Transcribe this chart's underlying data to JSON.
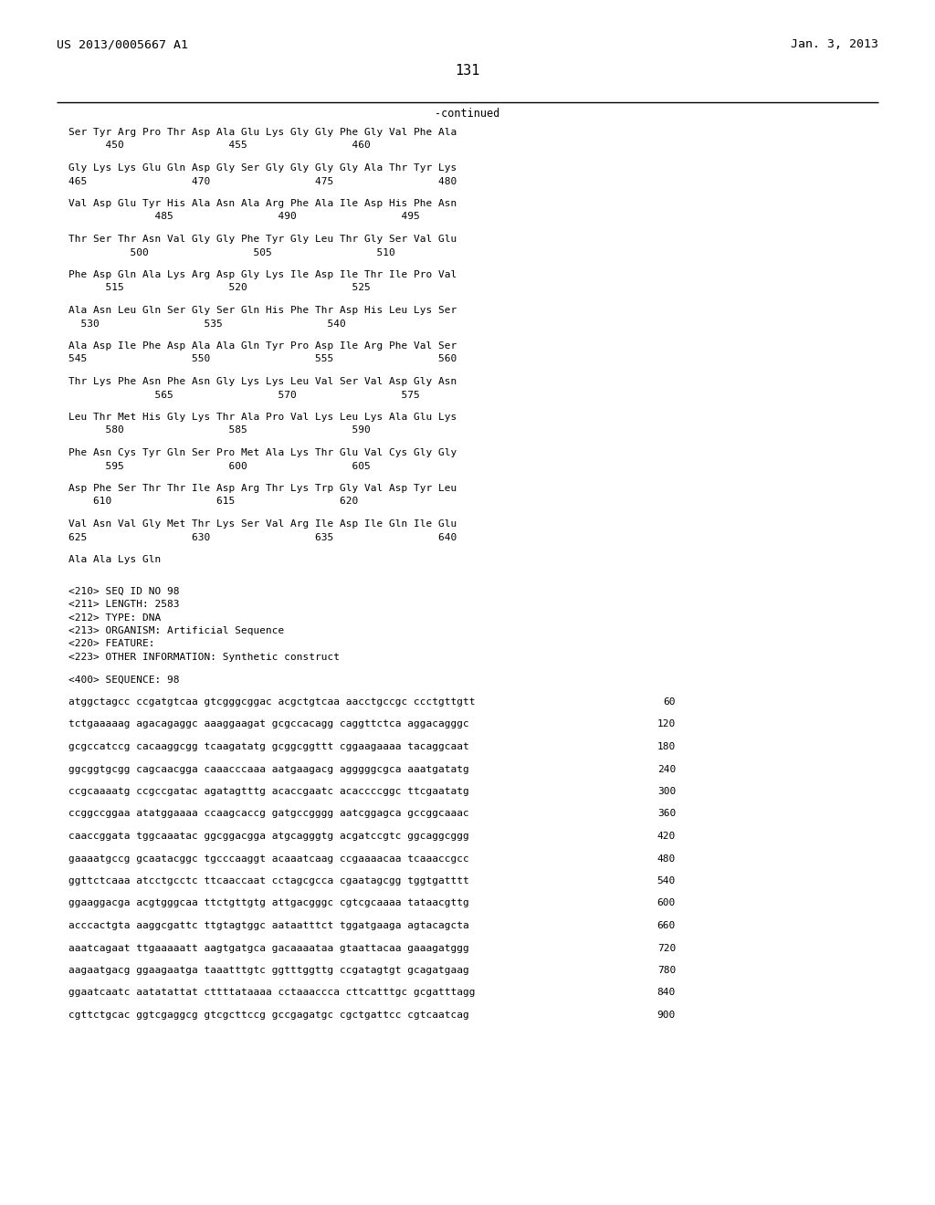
{
  "header_left": "US 2013/0005667 A1",
  "header_right": "Jan. 3, 2013",
  "page_number": "131",
  "continued_label": "-continued",
  "background_color": "#ffffff",
  "text_color": "#000000",
  "content_lines": [
    {
      "type": "seq",
      "text": "Ser Tyr Arg Pro Thr Asp Ala Glu Lys Gly Gly Phe Gly Val Phe Ala"
    },
    {
      "type": "num",
      "text": "      450                 455                 460"
    },
    {
      "type": "blank"
    },
    {
      "type": "seq",
      "text": "Gly Lys Lys Glu Gln Asp Gly Ser Gly Gly Gly Gly Ala Thr Tyr Lys"
    },
    {
      "type": "num",
      "text": "465                 470                 475                 480"
    },
    {
      "type": "blank"
    },
    {
      "type": "seq",
      "text": "Val Asp Glu Tyr His Ala Asn Ala Arg Phe Ala Ile Asp His Phe Asn"
    },
    {
      "type": "num",
      "text": "              485                 490                 495"
    },
    {
      "type": "blank"
    },
    {
      "type": "seq",
      "text": "Thr Ser Thr Asn Val Gly Gly Phe Tyr Gly Leu Thr Gly Ser Val Glu"
    },
    {
      "type": "num",
      "text": "          500                 505                 510"
    },
    {
      "type": "blank"
    },
    {
      "type": "seq",
      "text": "Phe Asp Gln Ala Lys Arg Asp Gly Lys Ile Asp Ile Thr Ile Pro Val"
    },
    {
      "type": "num",
      "text": "      515                 520                 525"
    },
    {
      "type": "blank"
    },
    {
      "type": "seq",
      "text": "Ala Asn Leu Gln Ser Gly Ser Gln His Phe Thr Asp His Leu Lys Ser"
    },
    {
      "type": "num",
      "text": "  530                 535                 540"
    },
    {
      "type": "blank"
    },
    {
      "type": "seq",
      "text": "Ala Asp Ile Phe Asp Ala Ala Gln Tyr Pro Asp Ile Arg Phe Val Ser"
    },
    {
      "type": "num",
      "text": "545                 550                 555                 560"
    },
    {
      "type": "blank"
    },
    {
      "type": "seq",
      "text": "Thr Lys Phe Asn Phe Asn Gly Lys Lys Leu Val Ser Val Asp Gly Asn"
    },
    {
      "type": "num",
      "text": "              565                 570                 575"
    },
    {
      "type": "blank"
    },
    {
      "type": "seq",
      "text": "Leu Thr Met His Gly Lys Thr Ala Pro Val Lys Leu Lys Ala Glu Lys"
    },
    {
      "type": "num",
      "text": "      580                 585                 590"
    },
    {
      "type": "blank"
    },
    {
      "type": "seq",
      "text": "Phe Asn Cys Tyr Gln Ser Pro Met Ala Lys Thr Glu Val Cys Gly Gly"
    },
    {
      "type": "num",
      "text": "      595                 600                 605"
    },
    {
      "type": "blank"
    },
    {
      "type": "seq",
      "text": "Asp Phe Ser Thr Thr Ile Asp Arg Thr Lys Trp Gly Val Asp Tyr Leu"
    },
    {
      "type": "num",
      "text": "    610                 615                 620"
    },
    {
      "type": "blank"
    },
    {
      "type": "seq",
      "text": "Val Asn Val Gly Met Thr Lys Ser Val Arg Ile Asp Ile Gln Ile Glu"
    },
    {
      "type": "num",
      "text": "625                 630                 635                 640"
    },
    {
      "type": "blank"
    },
    {
      "type": "seq",
      "text": "Ala Ala Lys Gln"
    },
    {
      "type": "blank"
    },
    {
      "type": "blank"
    },
    {
      "type": "meta",
      "text": "<210> SEQ ID NO 98"
    },
    {
      "type": "meta",
      "text": "<211> LENGTH: 2583"
    },
    {
      "type": "meta",
      "text": "<212> TYPE: DNA"
    },
    {
      "type": "meta",
      "text": "<213> ORGANISM: Artificial Sequence"
    },
    {
      "type": "meta",
      "text": "<220> FEATURE:"
    },
    {
      "type": "meta",
      "text": "<223> OTHER INFORMATION: Synthetic construct"
    },
    {
      "type": "blank"
    },
    {
      "type": "meta",
      "text": "<400> SEQUENCE: 98"
    },
    {
      "type": "blank"
    },
    {
      "type": "dna",
      "seq": "atggctagcc ccgatgtcaa gtcgggcggac acgctgtcaa aacctgccgc ccctgttgtt",
      "num": "60"
    },
    {
      "type": "blank"
    },
    {
      "type": "dna",
      "seq": "tctgaaaaag agacagaggc aaaggaagat gcgccacagg caggttctca aggacagggc",
      "num": "120"
    },
    {
      "type": "blank"
    },
    {
      "type": "dna",
      "seq": "gcgccatccg cacaaggcgg tcaagatatg gcggcggttt cggaagaaaa tacaggcaat",
      "num": "180"
    },
    {
      "type": "blank"
    },
    {
      "type": "dna",
      "seq": "ggcggtgcgg cagcaacgga caaacccaaa aatgaagacg agggggcgca aaatgatatg",
      "num": "240"
    },
    {
      "type": "blank"
    },
    {
      "type": "dna",
      "seq": "ccgcaaaatg ccgccgatac agatagtttg acaccgaatc acaccccggc ttcgaatatg",
      "num": "300"
    },
    {
      "type": "blank"
    },
    {
      "type": "dna",
      "seq": "ccggccggaa atatggaaaa ccaagcaccg gatgccgggg aatcggagca gccggcaaac",
      "num": "360"
    },
    {
      "type": "blank"
    },
    {
      "type": "dna",
      "seq": "caaccggata tggcaaatac ggcggacgga atgcagggtg acgatccgtc ggcaggcggg",
      "num": "420"
    },
    {
      "type": "blank"
    },
    {
      "type": "dna",
      "seq": "gaaaatgccg gcaatacggc tgcccaaggt acaaatcaag ccgaaaacaa tcaaaccgcc",
      "num": "480"
    },
    {
      "type": "blank"
    },
    {
      "type": "dna",
      "seq": "ggttctcaaa atcctgcctc ttcaaccaat cctagcgcca cgaatagcgg tggtgatttt",
      "num": "540"
    },
    {
      "type": "blank"
    },
    {
      "type": "dna",
      "seq": "ggaaggacga acgtgggcaa ttctgttgtg attgacgggc cgtcgcaaaa tataacgttg",
      "num": "600"
    },
    {
      "type": "blank"
    },
    {
      "type": "dna",
      "seq": "acccactgta aaggcgattc ttgtagtggc aataatttct tggatgaaga agtacagcta",
      "num": "660"
    },
    {
      "type": "blank"
    },
    {
      "type": "dna",
      "seq": "aaatcagaat ttgaaaaatt aagtgatgca gacaaaataa gtaattacaa gaaagatggg",
      "num": "720"
    },
    {
      "type": "blank"
    },
    {
      "type": "dna",
      "seq": "aagaatgacg ggaagaatga taaatttgtc ggtttggttg ccgatagtgt gcagatgaag",
      "num": "780"
    },
    {
      "type": "blank"
    },
    {
      "type": "dna",
      "seq": "ggaatcaatc aatatattat cttttataaaa cctaaaccca cttcatttgc gcgatttagg",
      "num": "840"
    },
    {
      "type": "blank"
    },
    {
      "type": "dna",
      "seq": "cgttctgcac ggtcgaggcg gtcgcttccg gccgagatgc cgctgattcc cgtcaatcag",
      "num": "900"
    }
  ]
}
